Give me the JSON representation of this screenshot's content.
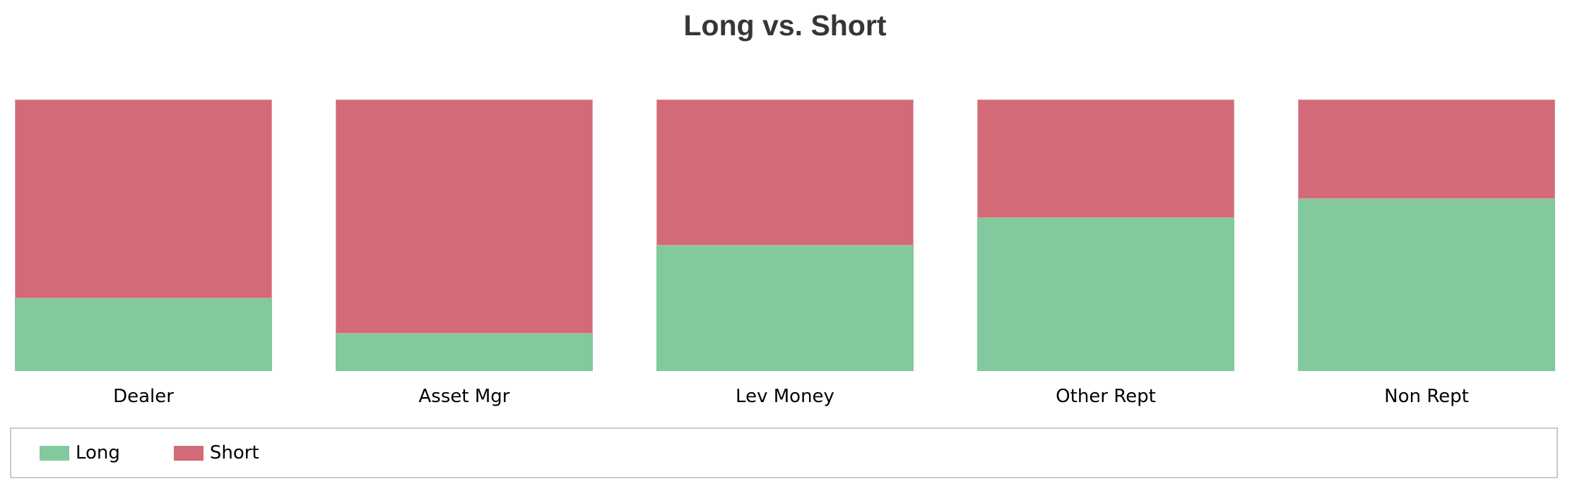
{
  "chart_data": {
    "type": "bar",
    "variant": "vertical-100pct-stacked",
    "title": "Long vs. Short",
    "title_color": "#363636",
    "categories": [
      "Dealer",
      "Asset Mgr",
      "Lev Money",
      "Other Rept",
      "Non Rept"
    ],
    "series": [
      {
        "name": "Long",
        "color": "#82ca9d",
        "values_pct": [
          26.7,
          13.8,
          46.2,
          56.4,
          63.4
        ]
      },
      {
        "name": "Short",
        "color": "#d26b77",
        "values_pct": [
          73.3,
          86.2,
          53.8,
          43.6,
          36.6
        ]
      }
    ],
    "stack_order_top_to_bottom": [
      "Short",
      "Long"
    ],
    "value_axis_visible": false,
    "grid": false,
    "legend": {
      "position": "bottom",
      "border_color": "#c9c9c9",
      "entries": [
        "Long",
        "Short"
      ]
    }
  }
}
